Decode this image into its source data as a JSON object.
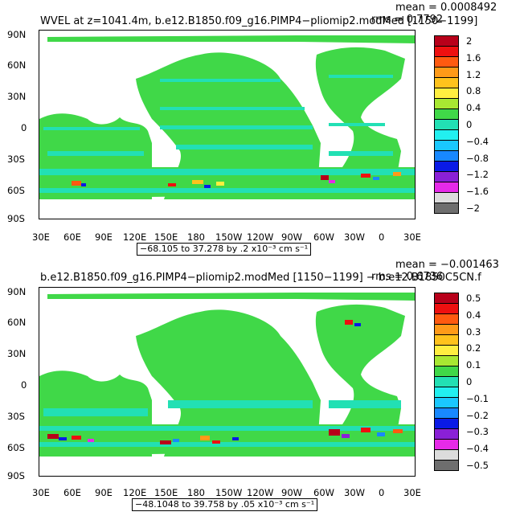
{
  "panels": [
    {
      "title": "WVEL at z=1041.4m, b.e12.B1850.f09_g16.PIMP4−pliomip2.modMed [1150−1199]",
      "mean": "mean = 0.0008492",
      "rms": "rms = 0.7792",
      "range_text": "−68.105 to 37.278 by .2 x10⁻³ cm s⁻¹",
      "colorbar_labels": [
        "2",
        "1.6",
        "1.2",
        "0.8",
        "0.4",
        "0",
        "−0.4",
        "−0.8",
        "−1.2",
        "−1.6",
        "−2"
      ],
      "colorbar_colors": [
        "#b8001a",
        "#ee1010",
        "#ff5a10",
        "#ff9a18",
        "#ffc21c",
        "#ffee40",
        "#a8e832",
        "#40d848",
        "#22e0b4",
        "#22f0f0",
        "#1ac8ff",
        "#1888ff",
        "#0a1ae6",
        "#8a20d6",
        "#e62ae8",
        "#dcdcdc",
        "#6e6e6e"
      ]
    },
    {
      "title": "b.e12.B1850.f09_g16.PIMP4−pliomip2.modMed [1150−1199] − b.e12.B1850C5CN.f",
      "mean": "mean = −0.001463",
      "rms": "rms = 0.6736",
      "range_text": "−48.1048 to 39.758 by .05 x10⁻³ cm s⁻¹",
      "colorbar_labels": [
        "0.5",
        "0.4",
        "0.3",
        "0.2",
        "0.1",
        "0",
        "−0.1",
        "−0.2",
        "−0.3",
        "−0.4",
        "−0.5"
      ],
      "colorbar_colors": [
        "#b8001a",
        "#ee1010",
        "#ff5a10",
        "#ff9a18",
        "#ffc21c",
        "#ffee40",
        "#a8e832",
        "#40d848",
        "#22e0b4",
        "#22f0f0",
        "#1ac8ff",
        "#1888ff",
        "#0a1ae6",
        "#8a20d6",
        "#e62ae8",
        "#dcdcdc",
        "#6e6e6e"
      ]
    }
  ],
  "axes": {
    "lat_labels": [
      "90N",
      "60N",
      "30N",
      "0",
      "30S",
      "60S",
      "90S"
    ],
    "lon_labels": [
      "30E",
      "60E",
      "90E",
      "120E",
      "150E",
      "180",
      "150W",
      "120W",
      "90W",
      "60W",
      "30W",
      "0",
      "30E"
    ]
  },
  "colors": {
    "ocean_base": "#40d848",
    "ocean_alt": "#22e0b4",
    "land": "#ffffff"
  }
}
